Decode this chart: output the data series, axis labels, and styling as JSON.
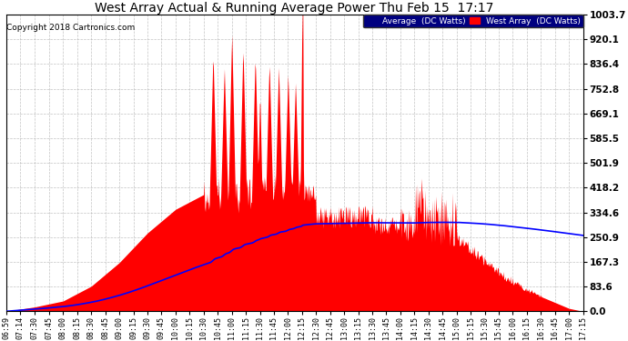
{
  "title": "West Array Actual & Running Average Power Thu Feb 15  17:17",
  "copyright": "Copyright 2018 Cartronics.com",
  "legend_avg": "Average  (DC Watts)",
  "legend_west": "West Array  (DC Watts)",
  "ymax": 1003.7,
  "yticks": [
    0.0,
    83.6,
    167.3,
    250.9,
    334.6,
    418.2,
    501.9,
    585.5,
    669.1,
    752.8,
    836.4,
    920.1,
    1003.7
  ],
  "bg_color": "#ffffff",
  "fill_color": "#ff0000",
  "line_color": "#0000ff",
  "grid_color": "#aaaaaa",
  "time_labels": [
    "06:59",
    "07:14",
    "07:30",
    "07:45",
    "08:00",
    "08:15",
    "08:30",
    "08:45",
    "09:00",
    "09:15",
    "09:30",
    "09:45",
    "10:00",
    "10:15",
    "10:30",
    "10:45",
    "11:00",
    "11:15",
    "11:30",
    "11:45",
    "12:00",
    "12:15",
    "12:30",
    "12:45",
    "13:00",
    "13:15",
    "13:30",
    "13:45",
    "14:00",
    "14:15",
    "14:30",
    "14:45",
    "15:00",
    "15:15",
    "15:30",
    "15:45",
    "16:00",
    "16:15",
    "16:30",
    "16:45",
    "17:00",
    "17:15"
  ]
}
